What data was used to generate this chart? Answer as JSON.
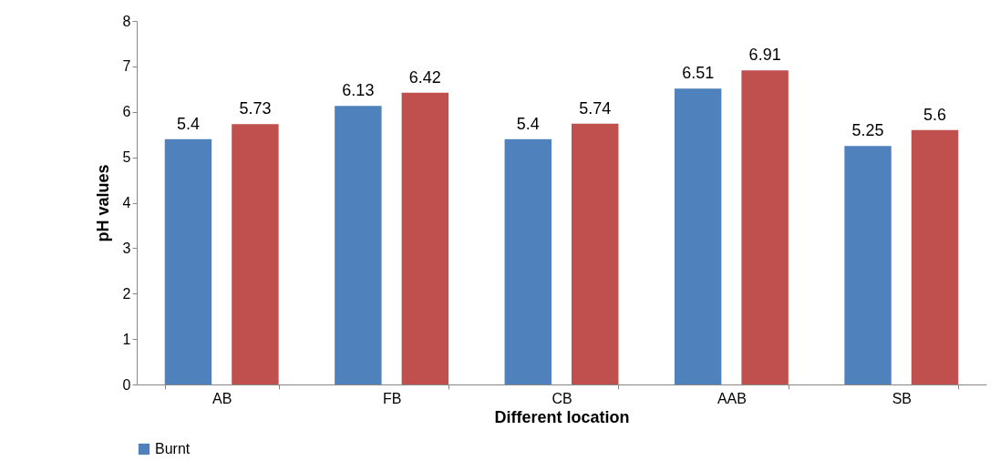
{
  "chart_data": {
    "type": "bar",
    "xlabel": "Different location",
    "ylabel": "pH values",
    "categories": [
      "AB",
      "FB",
      "CB",
      "AAB",
      "SB"
    ],
    "series": [
      {
        "name": "Burnt",
        "color": "#4f81bd",
        "values": [
          5.4,
          6.13,
          5.4,
          6.51,
          5.25
        ]
      },
      {
        "color": "#c0504d",
        "values": [
          5.73,
          6.42,
          5.74,
          6.91,
          5.6
        ]
      }
    ],
    "ylim": [
      0,
      8
    ],
    "yticks": [
      0,
      1,
      2,
      3,
      4,
      5,
      6,
      7,
      8
    ],
    "data_labels": true,
    "grid": false,
    "legend": "bottom"
  }
}
